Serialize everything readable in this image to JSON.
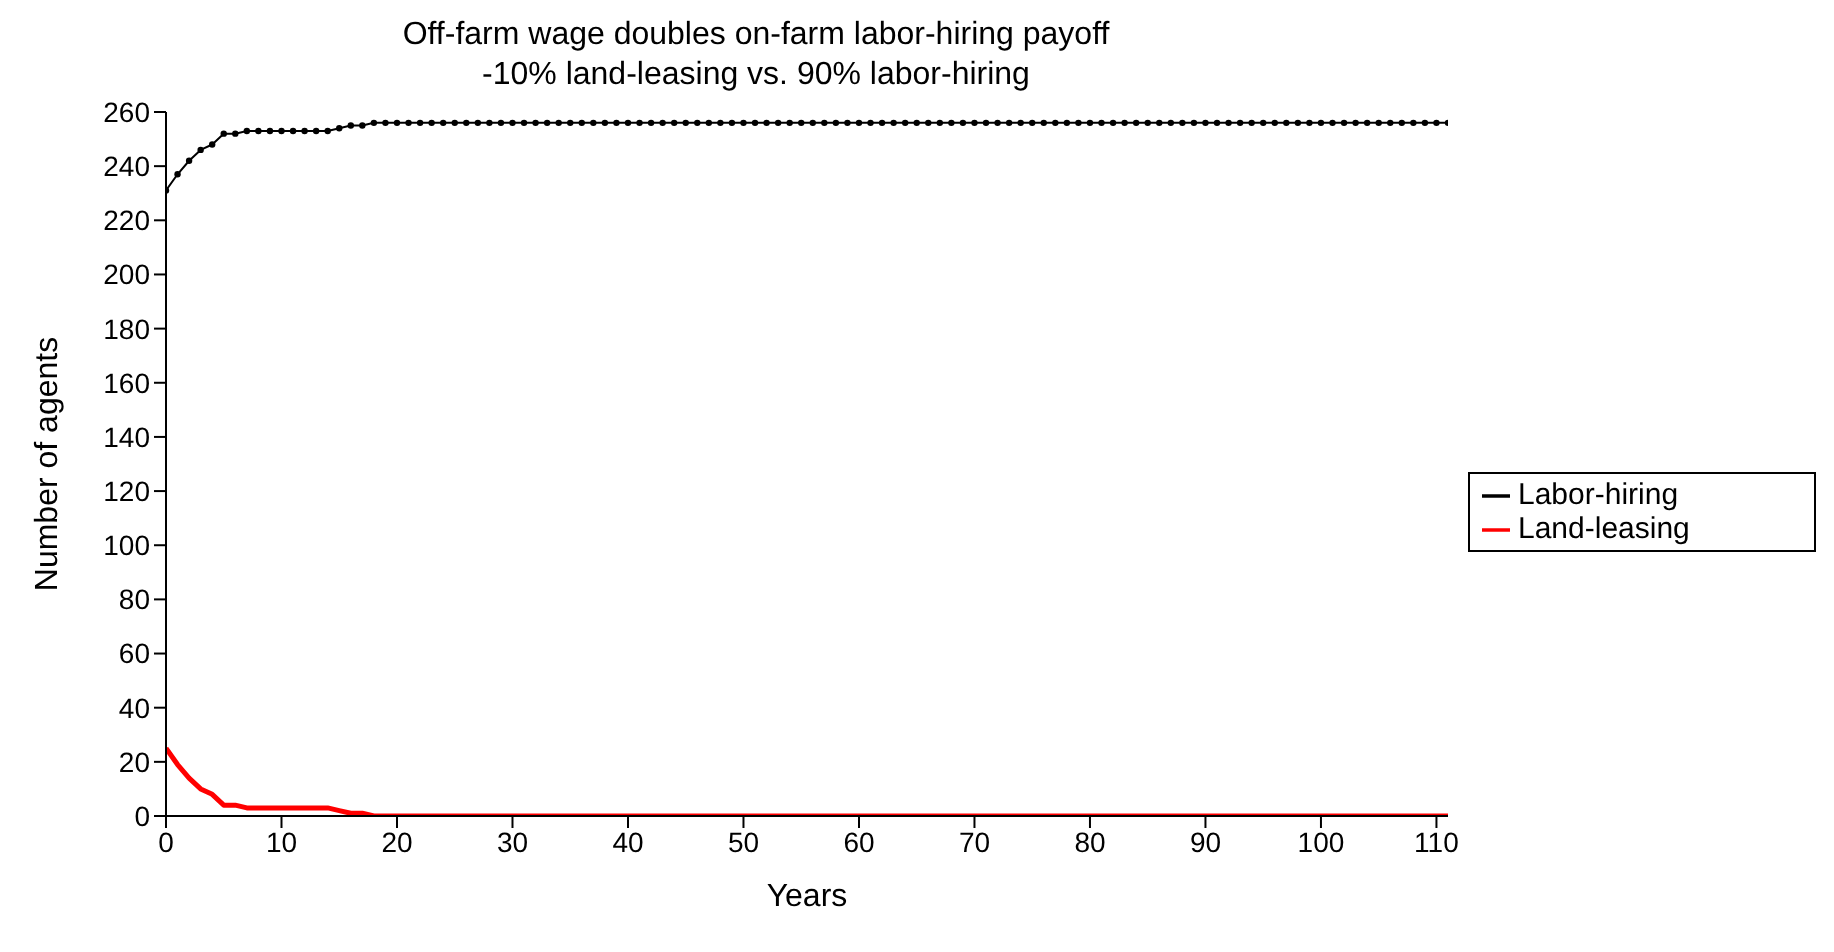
{
  "chart_data": {
    "type": "line",
    "title": "Off-farm wage doubles on-farm labor-hiring payoff",
    "subtitle": "-10% land-leasing vs. 90% labor-hiring",
    "xlabel": "Years",
    "ylabel": "Number of agents",
    "x": [
      0,
      1,
      2,
      3,
      4,
      5,
      6,
      7,
      8,
      9,
      10,
      11,
      12,
      13,
      14,
      15,
      16,
      17,
      18,
      19,
      20,
      21,
      22,
      23,
      24,
      25,
      26,
      27,
      28,
      29,
      30,
      31,
      32,
      33,
      34,
      35,
      36,
      37,
      38,
      39,
      40,
      41,
      42,
      43,
      44,
      45,
      46,
      47,
      48,
      49,
      50,
      51,
      52,
      53,
      54,
      55,
      56,
      57,
      58,
      59,
      60,
      61,
      62,
      63,
      64,
      65,
      66,
      67,
      68,
      69,
      70,
      71,
      72,
      73,
      74,
      75,
      76,
      77,
      78,
      79,
      80,
      81,
      82,
      83,
      84,
      85,
      86,
      87,
      88,
      89,
      90,
      91,
      92,
      93,
      94,
      95,
      96,
      97,
      98,
      99,
      100,
      101,
      102,
      103,
      104,
      105,
      106,
      107,
      108,
      109,
      110,
      111
    ],
    "series": [
      {
        "name": "Land-leasing",
        "color": "#ff0000",
        "marker": "none",
        "values": [
          25,
          19,
          14,
          10,
          8,
          4,
          4,
          3,
          3,
          3,
          3,
          3,
          3,
          3,
          3,
          2,
          1,
          1,
          0,
          0,
          0,
          0,
          0,
          0,
          0,
          0,
          0,
          0,
          0,
          0,
          0,
          0,
          0,
          0,
          0,
          0,
          0,
          0,
          0,
          0,
          0,
          0,
          0,
          0,
          0,
          0,
          0,
          0,
          0,
          0,
          0,
          0,
          0,
          0,
          0,
          0,
          0,
          0,
          0,
          0,
          0,
          0,
          0,
          0,
          0,
          0,
          0,
          0,
          0,
          0,
          0,
          0,
          0,
          0,
          0,
          0,
          0,
          0,
          0,
          0,
          0,
          0,
          0,
          0,
          0,
          0,
          0,
          0,
          0,
          0,
          0,
          0,
          0,
          0,
          0,
          0,
          0,
          0,
          0,
          0,
          0,
          0,
          0,
          0,
          0,
          0,
          0,
          0,
          0,
          0,
          0,
          0
        ]
      },
      {
        "name": "Labor-hiring",
        "color": "#000000",
        "marker": "circle",
        "values": [
          231,
          237,
          242,
          246,
          248,
          252,
          252,
          253,
          253,
          253,
          253,
          253,
          253,
          253,
          253,
          254,
          255,
          255,
          256,
          256,
          256,
          256,
          256,
          256,
          256,
          256,
          256,
          256,
          256,
          256,
          256,
          256,
          256,
          256,
          256,
          256,
          256,
          256,
          256,
          256,
          256,
          256,
          256,
          256,
          256,
          256,
          256,
          256,
          256,
          256,
          256,
          256,
          256,
          256,
          256,
          256,
          256,
          256,
          256,
          256,
          256,
          256,
          256,
          256,
          256,
          256,
          256,
          256,
          256,
          256,
          256,
          256,
          256,
          256,
          256,
          256,
          256,
          256,
          256,
          256,
          256,
          256,
          256,
          256,
          256,
          256,
          256,
          256,
          256,
          256,
          256,
          256,
          256,
          256,
          256,
          256,
          256,
          256,
          256,
          256,
          256,
          256,
          256,
          256,
          256,
          256,
          256,
          256,
          256,
          256,
          256,
          256
        ]
      }
    ],
    "xlim": [
      0,
      111
    ],
    "xticks": [
      0,
      10,
      20,
      30,
      40,
      50,
      60,
      70,
      80,
      90,
      100,
      110
    ],
    "ylim": [
      0,
      260
    ],
    "yticks": [
      0,
      20,
      40,
      60,
      80,
      100,
      120,
      140,
      160,
      180,
      200,
      220,
      240,
      260
    ],
    "grid": false,
    "legend": "right"
  }
}
